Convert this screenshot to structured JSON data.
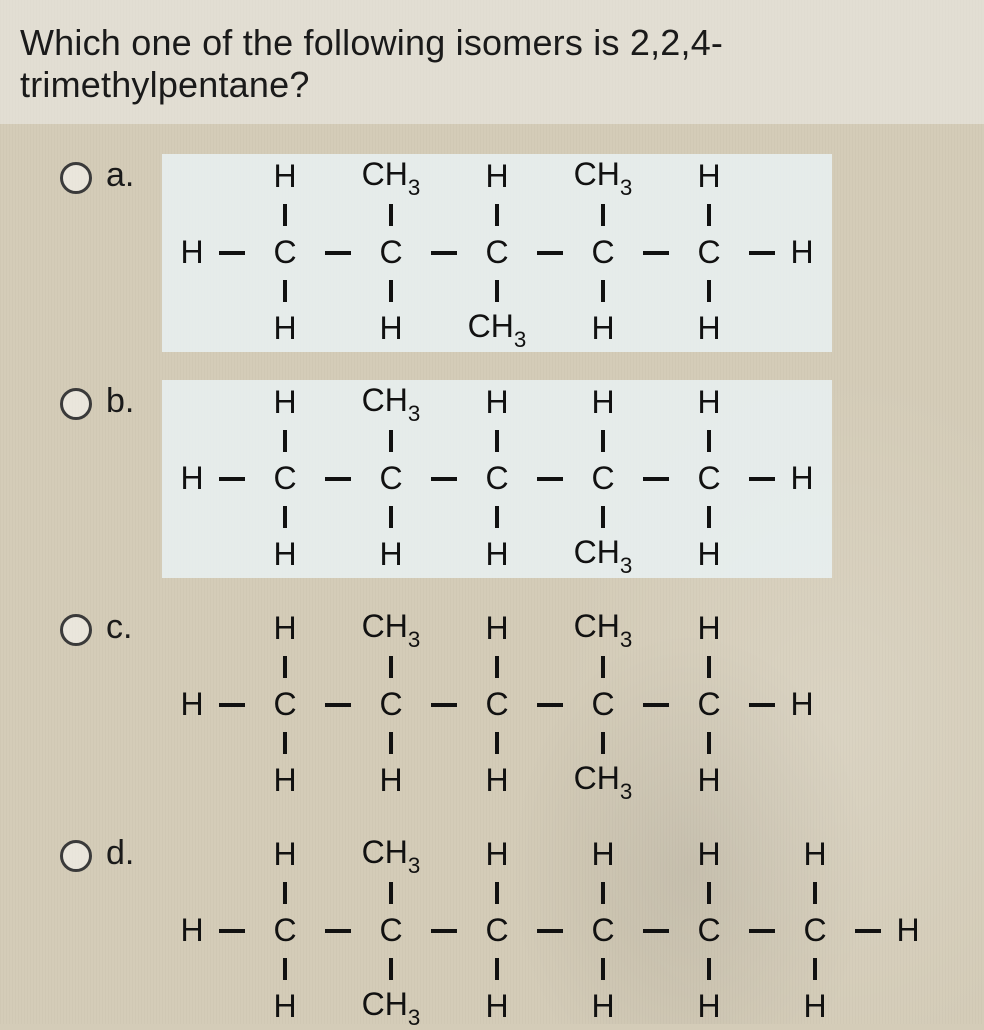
{
  "question": "Which one of the following isomers is 2,2,4-trimethylpentane?",
  "colors": {
    "page_bg": "#d4ccb8",
    "highlight_bg": "#ebf5f8",
    "text": "#1a1a1a",
    "bond": "#111111",
    "radio_border": "#3a3a3a"
  },
  "typography": {
    "question_fontsize": 36,
    "label_fontsize": 34,
    "structure_fontsize": 32,
    "font_family": "Arial, sans-serif"
  },
  "options": [
    {
      "label": "a.",
      "highlight": true,
      "chain_length": 5,
      "top": [
        "H",
        "CH3",
        "H",
        "CH3",
        "H"
      ],
      "bottom": [
        "H",
        "H",
        "CH3",
        "H",
        "H"
      ]
    },
    {
      "label": "b.",
      "highlight": true,
      "chain_length": 5,
      "top": [
        "H",
        "CH3",
        "H",
        "H",
        "H"
      ],
      "bottom": [
        "H",
        "H",
        "H",
        "CH3",
        "H"
      ]
    },
    {
      "label": "c.",
      "highlight": false,
      "chain_length": 5,
      "top": [
        "H",
        "CH3",
        "H",
        "CH3",
        "H"
      ],
      "bottom": [
        "H",
        "H",
        "H",
        "CH3",
        "H"
      ]
    },
    {
      "label": "d.",
      "highlight": false,
      "chain_length": 6,
      "top": [
        "H",
        "CH3",
        "H",
        "H",
        "H",
        "H"
      ],
      "bottom": [
        "H",
        "CH3",
        "H",
        "H",
        "H",
        "H"
      ]
    }
  ]
}
